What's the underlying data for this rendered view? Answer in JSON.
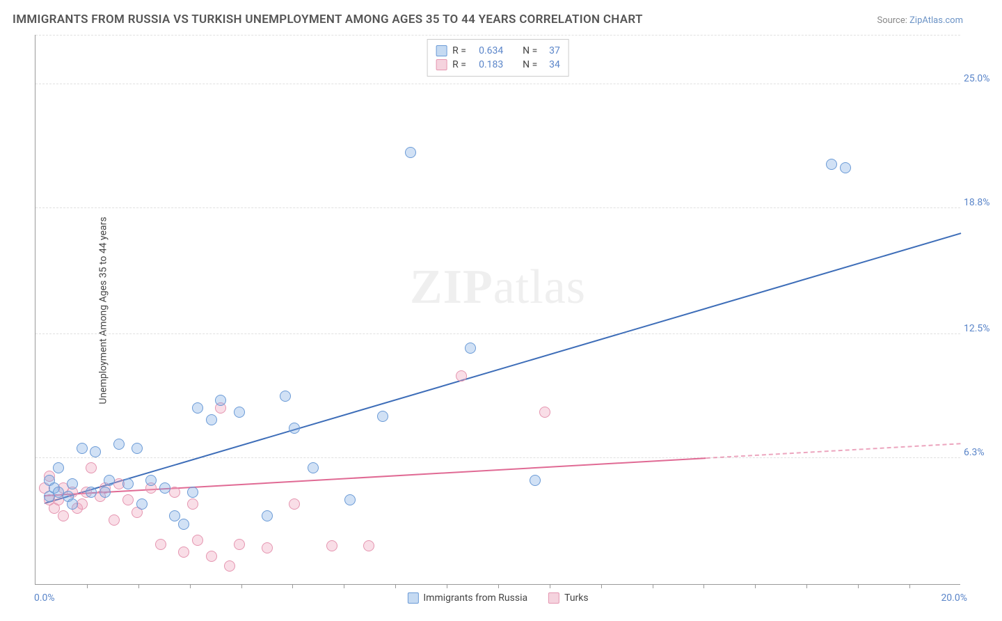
{
  "title": "IMMIGRANTS FROM RUSSIA VS TURKISH UNEMPLOYMENT AMONG AGES 35 TO 44 YEARS CORRELATION CHART",
  "source_prefix": "Source: ",
  "source_link": "ZipAtlas.com",
  "y_axis_label": "Unemployment Among Ages 35 to 44 years",
  "watermark": {
    "bold": "ZIP",
    "rest": "atlas"
  },
  "chart": {
    "type": "scatter-with-regression",
    "background": "#ffffff",
    "grid_color": "#e0e0e0",
    "axis_color": "#999999",
    "accent_text_color": "#5a85c9",
    "x": {
      "min": 0.0,
      "max": 20.0,
      "min_label": "0.0%",
      "max_label": "20.0%",
      "tick_step_pct": 5.555
    },
    "y": {
      "min": 0.0,
      "max": 27.5,
      "ticks": [
        6.3,
        12.5,
        18.8,
        25.0
      ],
      "tick_labels": [
        "6.3%",
        "12.5%",
        "18.8%",
        "25.0%"
      ]
    },
    "marker_radius": 8,
    "marker_stroke_width": 1.4,
    "series": [
      {
        "key": "russia",
        "label": "Immigrants from Russia",
        "color_fill": "rgba(122,168,225,0.35)",
        "color_stroke": "#6a9ad6",
        "swatch_fill": "#c5daf2",
        "swatch_border": "#6a9ad6",
        "r": "0.634",
        "n": "37",
        "trend": {
          "x1": 0.2,
          "y1": 4.0,
          "x2": 20.0,
          "y2": 17.5,
          "solid_to_x": 20.0,
          "width": 2,
          "color": "#3d6db8"
        },
        "points": [
          [
            0.3,
            5.2
          ],
          [
            0.3,
            4.4
          ],
          [
            0.4,
            4.8
          ],
          [
            0.5,
            4.6
          ],
          [
            0.5,
            5.8
          ],
          [
            0.7,
            4.4
          ],
          [
            0.8,
            5.0
          ],
          [
            0.8,
            4.0
          ],
          [
            1.0,
            6.8
          ],
          [
            1.2,
            4.6
          ],
          [
            1.3,
            6.6
          ],
          [
            1.5,
            4.6
          ],
          [
            1.6,
            5.2
          ],
          [
            1.8,
            7.0
          ],
          [
            2.0,
            5.0
          ],
          [
            2.2,
            6.8
          ],
          [
            2.3,
            4.0
          ],
          [
            2.5,
            5.2
          ],
          [
            2.8,
            4.8
          ],
          [
            3.0,
            3.4
          ],
          [
            3.2,
            3.0
          ],
          [
            3.4,
            4.6
          ],
          [
            3.5,
            8.8
          ],
          [
            3.8,
            8.2
          ],
          [
            4.0,
            9.2
          ],
          [
            4.4,
            8.6
          ],
          [
            5.0,
            3.4
          ],
          [
            5.4,
            9.4
          ],
          [
            5.6,
            7.8
          ],
          [
            6.0,
            5.8
          ],
          [
            6.8,
            4.2
          ],
          [
            7.5,
            8.4
          ],
          [
            8.1,
            21.6
          ],
          [
            9.4,
            11.8
          ],
          [
            10.8,
            5.2
          ],
          [
            17.2,
            21.0
          ],
          [
            17.5,
            20.8
          ]
        ]
      },
      {
        "key": "turks",
        "label": "Turks",
        "color_fill": "rgba(238,160,185,0.35)",
        "color_stroke": "#e595b0",
        "swatch_fill": "#f5d3de",
        "swatch_border": "#e595b0",
        "r": "0.183",
        "n": "34",
        "trend": {
          "x1": 0.2,
          "y1": 4.4,
          "x2": 20.0,
          "y2": 7.0,
          "solid_to_x": 14.5,
          "width": 2,
          "color": "#e06a94"
        },
        "points": [
          [
            0.2,
            4.8
          ],
          [
            0.3,
            4.2
          ],
          [
            0.3,
            5.4
          ],
          [
            0.4,
            3.8
          ],
          [
            0.5,
            4.2
          ],
          [
            0.6,
            4.8
          ],
          [
            0.6,
            3.4
          ],
          [
            0.8,
            4.6
          ],
          [
            0.9,
            3.8
          ],
          [
            1.0,
            4.0
          ],
          [
            1.1,
            4.6
          ],
          [
            1.2,
            5.8
          ],
          [
            1.4,
            4.4
          ],
          [
            1.5,
            4.8
          ],
          [
            1.7,
            3.2
          ],
          [
            1.8,
            5.0
          ],
          [
            2.0,
            4.2
          ],
          [
            2.2,
            3.6
          ],
          [
            2.5,
            4.8
          ],
          [
            2.7,
            2.0
          ],
          [
            3.0,
            4.6
          ],
          [
            3.2,
            1.6
          ],
          [
            3.4,
            4.0
          ],
          [
            3.5,
            2.2
          ],
          [
            3.8,
            1.4
          ],
          [
            4.0,
            8.8
          ],
          [
            4.2,
            0.9
          ],
          [
            4.4,
            2.0
          ],
          [
            5.0,
            1.8
          ],
          [
            5.6,
            4.0
          ],
          [
            6.4,
            1.9
          ],
          [
            7.2,
            1.9
          ],
          [
            9.2,
            10.4
          ],
          [
            11.0,
            8.6
          ]
        ]
      }
    ]
  },
  "legend_top": {
    "r_label": "R =",
    "n_label": "N ="
  }
}
